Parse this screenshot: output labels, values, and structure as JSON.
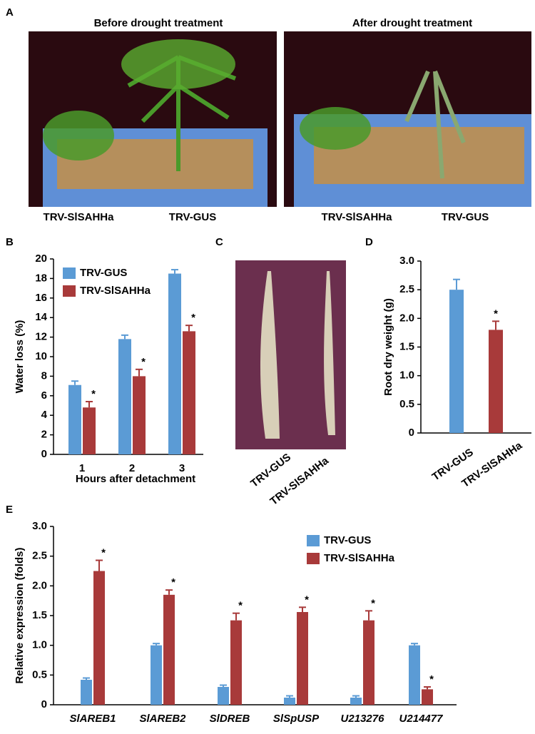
{
  "panel_labels": [
    "A",
    "B",
    "C",
    "D",
    "E"
  ],
  "panel_a": {
    "titles": [
      "Before drought treatment",
      "After drought treatment"
    ],
    "captions_left": [
      "TRV-SlSAHHa",
      "TRV-GUS"
    ],
    "captions_right": [
      "TRV-SlSAHHa",
      "TRV-GUS"
    ]
  },
  "panel_c": {
    "captions": [
      "TRV-GUS",
      "TRV-SlSAHHa"
    ]
  },
  "chart_data": [
    {
      "type": "bar",
      "xlabel": "Hours after detachment",
      "ylabel": "Water loss (%)",
      "categories": [
        "1",
        "2",
        "3"
      ],
      "series": [
        {
          "name": "TRV-GUS",
          "color": "#5b9bd5",
          "values": [
            7.1,
            11.8,
            18.5
          ],
          "errors": [
            0.4,
            0.4,
            0.4
          ]
        },
        {
          "name": "TRV-SlSAHHa",
          "color": "#a83a3a",
          "values": [
            4.8,
            8.0,
            12.6
          ],
          "errors": [
            0.6,
            0.7,
            0.6
          ],
          "significance": [
            "*",
            "*",
            "*"
          ]
        }
      ],
      "ylim": [
        0,
        20
      ],
      "yticks": [
        0,
        2,
        4,
        6,
        8,
        10,
        12,
        14,
        16,
        18,
        20
      ],
      "legend": "upper left"
    },
    {
      "type": "bar",
      "ylabel": "Root dry weight (g)",
      "categories": [
        "TRV-GUS",
        "TRV-SlSAHHa"
      ],
      "values": [
        2.5,
        1.8
      ],
      "errors": [
        0.18,
        0.15
      ],
      "colors": [
        "#5b9bd5",
        "#a83a3a"
      ],
      "significance": [
        null,
        "*"
      ],
      "ylim": [
        0,
        3.0
      ],
      "yticks": [
        0,
        0.5,
        {
          "value": 1,
          "label": "1.0"
        },
        1.5,
        {
          "value": 2,
          "label": "2.0"
        },
        2.5,
        {
          "value": 3,
          "label": "3.0"
        }
      ]
    },
    {
      "type": "bar",
      "ylabel": "Relative expression (folds)",
      "categories": [
        "SlAREB1",
        "SlAREB2",
        "SlDREB",
        "SlSpUSP",
        "U213276",
        "U214477"
      ],
      "series": [
        {
          "name": "TRV-GUS",
          "color": "#5b9bd5",
          "values": [
            0.42,
            1.0,
            0.3,
            0.12,
            0.12,
            1.0
          ],
          "errors": [
            0.03,
            0.03,
            0.03,
            0.03,
            0.03,
            0.03
          ]
        },
        {
          "name": "TRV-SlSAHHa",
          "color": "#a83a3a",
          "values": [
            2.25,
            1.85,
            1.42,
            1.56,
            1.42,
            0.26
          ],
          "errors": [
            0.18,
            0.08,
            0.12,
            0.08,
            0.16,
            0.04
          ],
          "significance": [
            "*",
            "*",
            "*",
            "*",
            "*",
            "*"
          ]
        }
      ],
      "ylim": [
        0,
        3.0
      ],
      "yticks": [
        0,
        0.5,
        {
          "value": 1,
          "label": "1.0"
        },
        1.5,
        {
          "value": 2,
          "label": "2.0"
        },
        2.5,
        {
          "value": 3,
          "label": "3.0"
        }
      ],
      "legend": "upper right"
    }
  ]
}
